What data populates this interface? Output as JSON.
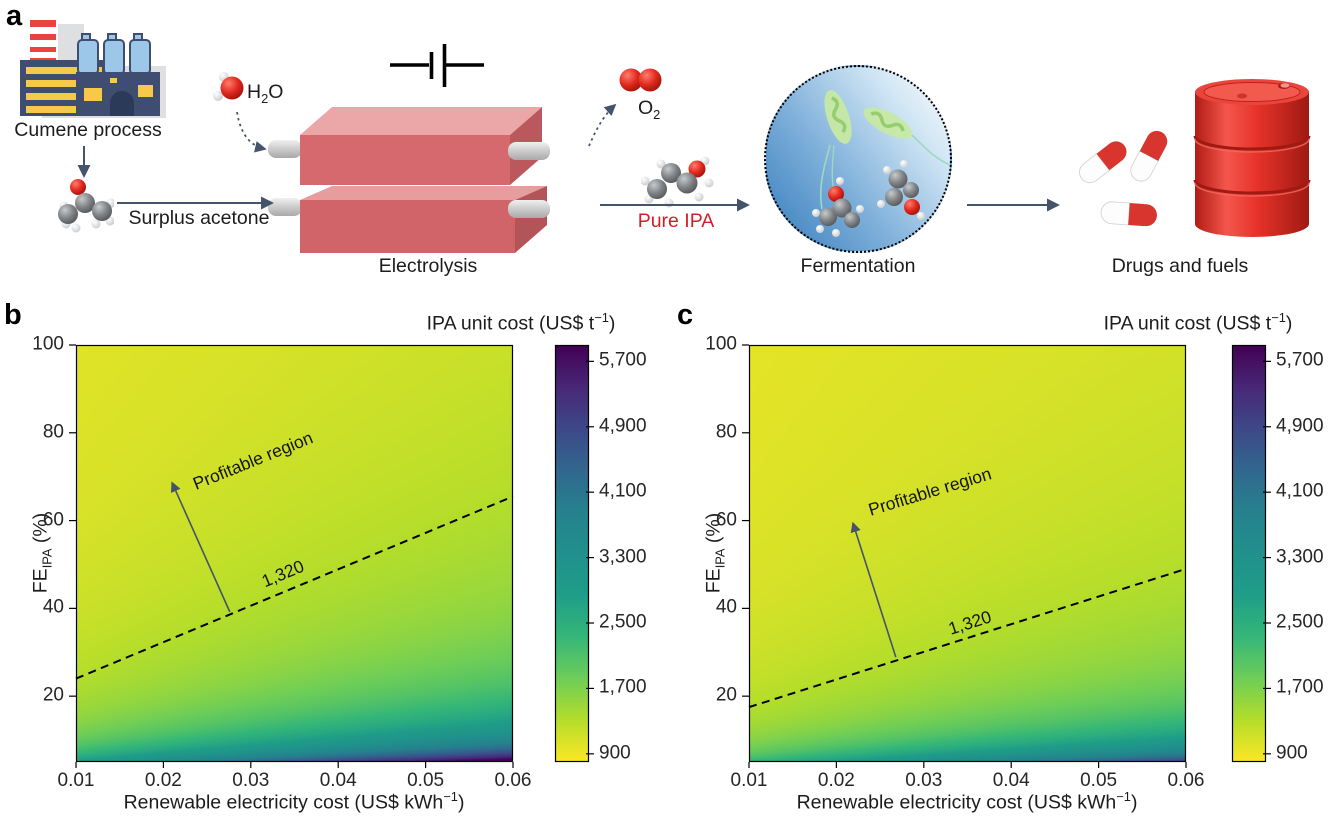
{
  "panel_a": {
    "label": "a",
    "cumene_label": "Cumene process",
    "surplus_label": "Surplus acetone",
    "electrolysis_label": "Electrolysis",
    "fermentation_label": "Fermentation",
    "drugs_label": "Drugs and fuels",
    "pure_ipa_label": "Pure IPA",
    "h2o": {
      "pre": "H",
      "sub": "2",
      "post": "O"
    },
    "o2": {
      "pre": "O",
      "sub": "2"
    },
    "colors": {
      "pure_ipa_red": "#d0202a",
      "arrow_slate": "#44546a",
      "electrolyzer_red": "#d5696d",
      "barrel_red": "#e63229",
      "pill_red": "#d8352f",
      "factory_navy": "#3f4d70",
      "factory_yellow": "#f7c948",
      "molecule_oxygen_red": "#d42318",
      "bioreactor_blue": "#4288c2",
      "bacteria_green": "#c6e9a4"
    }
  },
  "chart_data": [
    {
      "type": "heatmap",
      "panel_label": "b",
      "title": {
        "pre": "IPA unit cost (US$ t",
        "sup": "−1",
        "post": ")"
      },
      "xlabel": {
        "pre": "Renewable electricity cost (US$ kWh",
        "sup": "−1",
        "post": ")"
      },
      "ylabel": {
        "pre": "FE",
        "sub": "IPA",
        "post": " (%)"
      },
      "xlim": [
        0.01,
        0.06
      ],
      "ylim": [
        5,
        100
      ],
      "xticks": [
        0.01,
        0.02,
        0.03,
        0.04,
        0.05,
        0.06
      ],
      "yticks": [
        20,
        40,
        60,
        80,
        100
      ],
      "grid": false,
      "colorbar": {
        "vmin": 800,
        "vmax": 5900,
        "ticks": [
          900,
          1700,
          2500,
          3300,
          4100,
          4900,
          5700
        ],
        "low_color": "#fde725",
        "high_color": "#440154",
        "colormap": "viridis reversed (yellow = low cost)"
      },
      "cost_model": {
        "description": "cost = base + (slope*x + intercept)*100/FE, fitted to the 1,320 contour",
        "base": 900
      },
      "contour": {
        "label": "1,320",
        "value": 1320,
        "points_x": [
          0.01,
          0.06
        ],
        "points_y": [
          24,
          65.5
        ],
        "label_pos": [
          0.0337,
          47.8
        ]
      },
      "annotation": {
        "text": "Profitable region",
        "text_pos": [
          0.0303,
          73.5
        ],
        "text_angle_deg": -22,
        "arrow_from": [
          0.0276,
          39.2
        ],
        "arrow_to": [
          0.021,
          68.6
        ]
      }
    },
    {
      "type": "heatmap",
      "panel_label": "c",
      "title": {
        "pre": "IPA unit cost (US$ t",
        "sup": "−1",
        "post": ")"
      },
      "xlabel": {
        "pre": "Renewable electricity cost (US$ kWh",
        "sup": "−1",
        "post": ")"
      },
      "ylabel": {
        "pre": "FE",
        "sub": "IPA",
        "post": " (%)"
      },
      "xlim": [
        0.01,
        0.06
      ],
      "ylim": [
        5,
        100
      ],
      "xticks": [
        0.01,
        0.02,
        0.03,
        0.04,
        0.05,
        0.06
      ],
      "yticks": [
        20,
        40,
        60,
        80,
        100
      ],
      "grid": false,
      "colorbar": {
        "vmin": 800,
        "vmax": 5900,
        "ticks": [
          900,
          1700,
          2500,
          3300,
          4100,
          4900,
          5700
        ],
        "low_color": "#fde725",
        "high_color": "#440154",
        "colormap": "viridis reversed (yellow = low cost)"
      },
      "cost_model": {
        "description": "cost = base + (slope*x + intercept)*100/FE, fitted to the 1,320 contour",
        "base": 900
      },
      "contour": {
        "label": "1,320",
        "value": 1320,
        "points_x": [
          0.01,
          0.06
        ],
        "points_y": [
          17.5,
          49
        ],
        "label_pos": [
          0.0353,
          36.7
        ]
      },
      "annotation": {
        "text": "Profitable region",
        "text_pos": [
          0.0307,
          66.5
        ],
        "text_angle_deg": -17,
        "arrow_from": [
          0.0268,
          28.9
        ],
        "arrow_to": [
          0.0219,
          59.4
        ]
      }
    }
  ]
}
